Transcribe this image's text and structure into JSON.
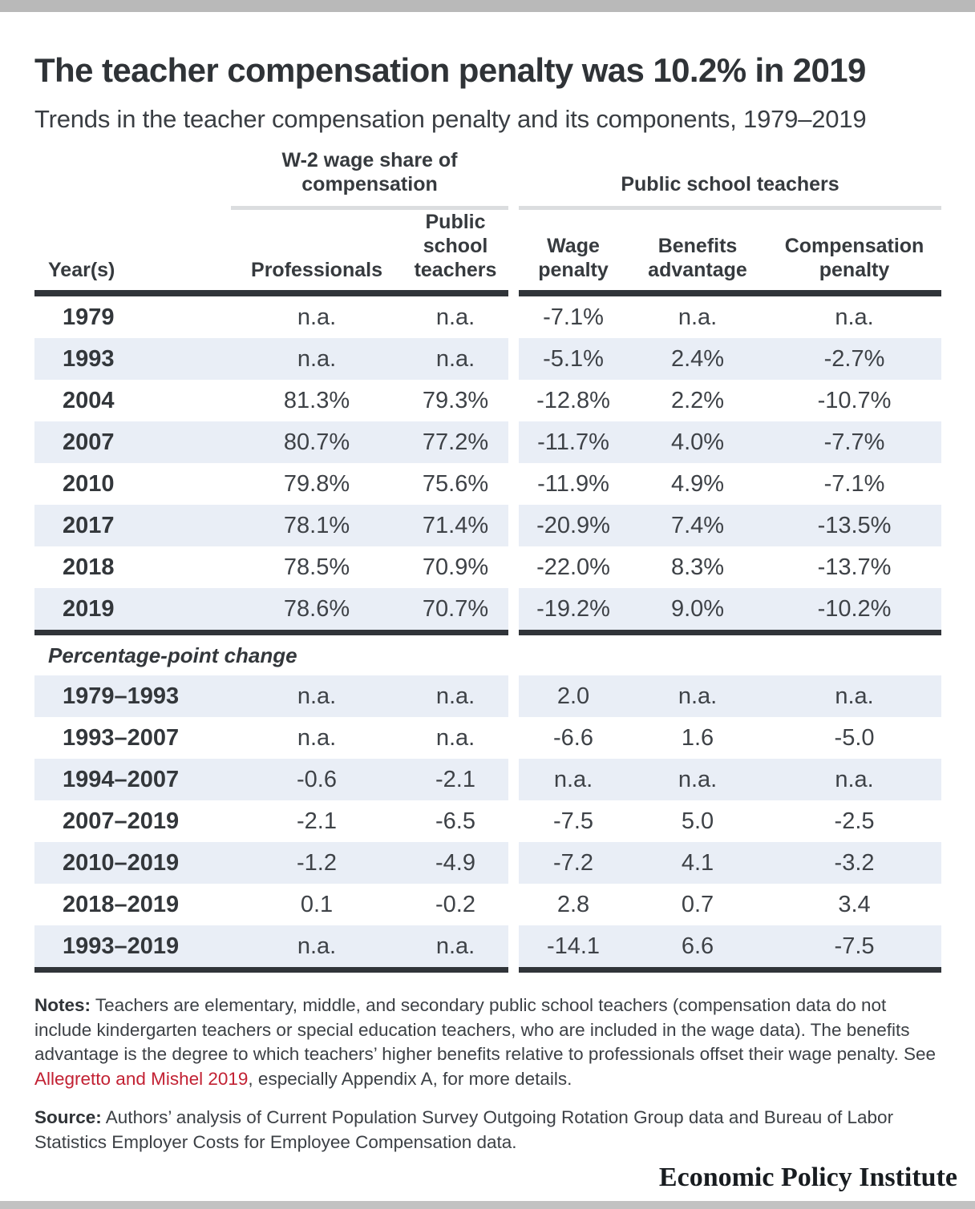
{
  "chart_data": {
    "type": "table",
    "title": "The teacher compensation penalty was 10.2% in 2019",
    "subtitle": "Trends in the teacher compensation penalty and its components, 1979–2019",
    "column_groups": [
      {
        "label": "W-2  wage share of compensation",
        "columns": [
          "Professionals",
          "Public school teachers"
        ]
      },
      {
        "label": "Public school teachers",
        "columns": [
          "Wage penalty",
          "Benefits advantage",
          "Compensation penalty"
        ]
      }
    ],
    "columns": [
      "Year(s)",
      "Professionals",
      "Public school teachers",
      "Wage penalty",
      "Benefits advantage",
      "Compensation penalty"
    ],
    "sections": [
      {
        "label": null,
        "rows": [
          [
            "1979",
            "n.a.",
            "n.a.",
            "-7.1%",
            "n.a.",
            "n.a."
          ],
          [
            "1993",
            "n.a.",
            "n.a.",
            "-5.1%",
            "2.4%",
            "-2.7%"
          ],
          [
            "2004",
            "81.3%",
            "79.3%",
            "-12.8%",
            "2.2%",
            "-10.7%"
          ],
          [
            "2007",
            "80.7%",
            "77.2%",
            "-11.7%",
            "4.0%",
            "-7.7%"
          ],
          [
            "2010",
            "79.8%",
            "75.6%",
            "-11.9%",
            "4.9%",
            "-7.1%"
          ],
          [
            "2017",
            "78.1%",
            "71.4%",
            "-20.9%",
            "7.4%",
            "-13.5%"
          ],
          [
            "2018",
            "78.5%",
            "70.9%",
            "-22.0%",
            "8.3%",
            "-13.7%"
          ],
          [
            "2019",
            "78.6%",
            "70.7%",
            "-19.2%",
            "9.0%",
            "-10.2%"
          ]
        ]
      },
      {
        "label": "Percentage-point change",
        "rows": [
          [
            "1979–1993",
            "n.a.",
            "n.a.",
            "2.0",
            "n.a.",
            "n.a."
          ],
          [
            "1993–2007",
            "n.a.",
            "n.a.",
            "-6.6",
            "1.6",
            "-5.0"
          ],
          [
            "1994–2007",
            "-0.6",
            "-2.1",
            "n.a.",
            "n.a.",
            "n.a."
          ],
          [
            "2007–2019",
            "-2.1",
            "-6.5",
            "-7.5",
            "5.0",
            "-2.5"
          ],
          [
            "2010–2019",
            "-1.2",
            "-4.9",
            "-7.2",
            "4.1",
            "-3.2"
          ],
          [
            "2018–2019",
            "0.1",
            "-0.2",
            "2.8",
            "0.7",
            "3.4"
          ],
          [
            "1993–2019",
            "n.a.",
            "n.a.",
            "-14.1",
            "6.6",
            "-7.5"
          ]
        ]
      }
    ]
  },
  "notes": {
    "label": "Notes:",
    "before_link": " Teachers are elementary, middle, and secondary public school teachers (compensation data do not include kindergarten teachers or special education teachers, who are included in the wage data). The benefits advantage is the degree to which teachers’ higher benefits relative to professionals offset their wage penalty. See ",
    "link_text": "Allegretto and Mishel 2019",
    "after_link": ", especially Appendix A, for more details."
  },
  "source": {
    "label": "Source:",
    "text": " Authors’ analysis of Current Population Survey Outgoing Rotation Group data and Bureau of Labor Statistics Employer Costs for Employee Compensation data."
  },
  "footer": {
    "logo": "Economic Policy Institute"
  },
  "colors": {
    "accent_link_red": "#c22133",
    "row_stripe": "#e9eef6",
    "rule_dark": "#303439",
    "rule_light": "#dbdddf",
    "top_bar": "#b9b9b9",
    "bottom_bar": "#c2c2c2"
  }
}
